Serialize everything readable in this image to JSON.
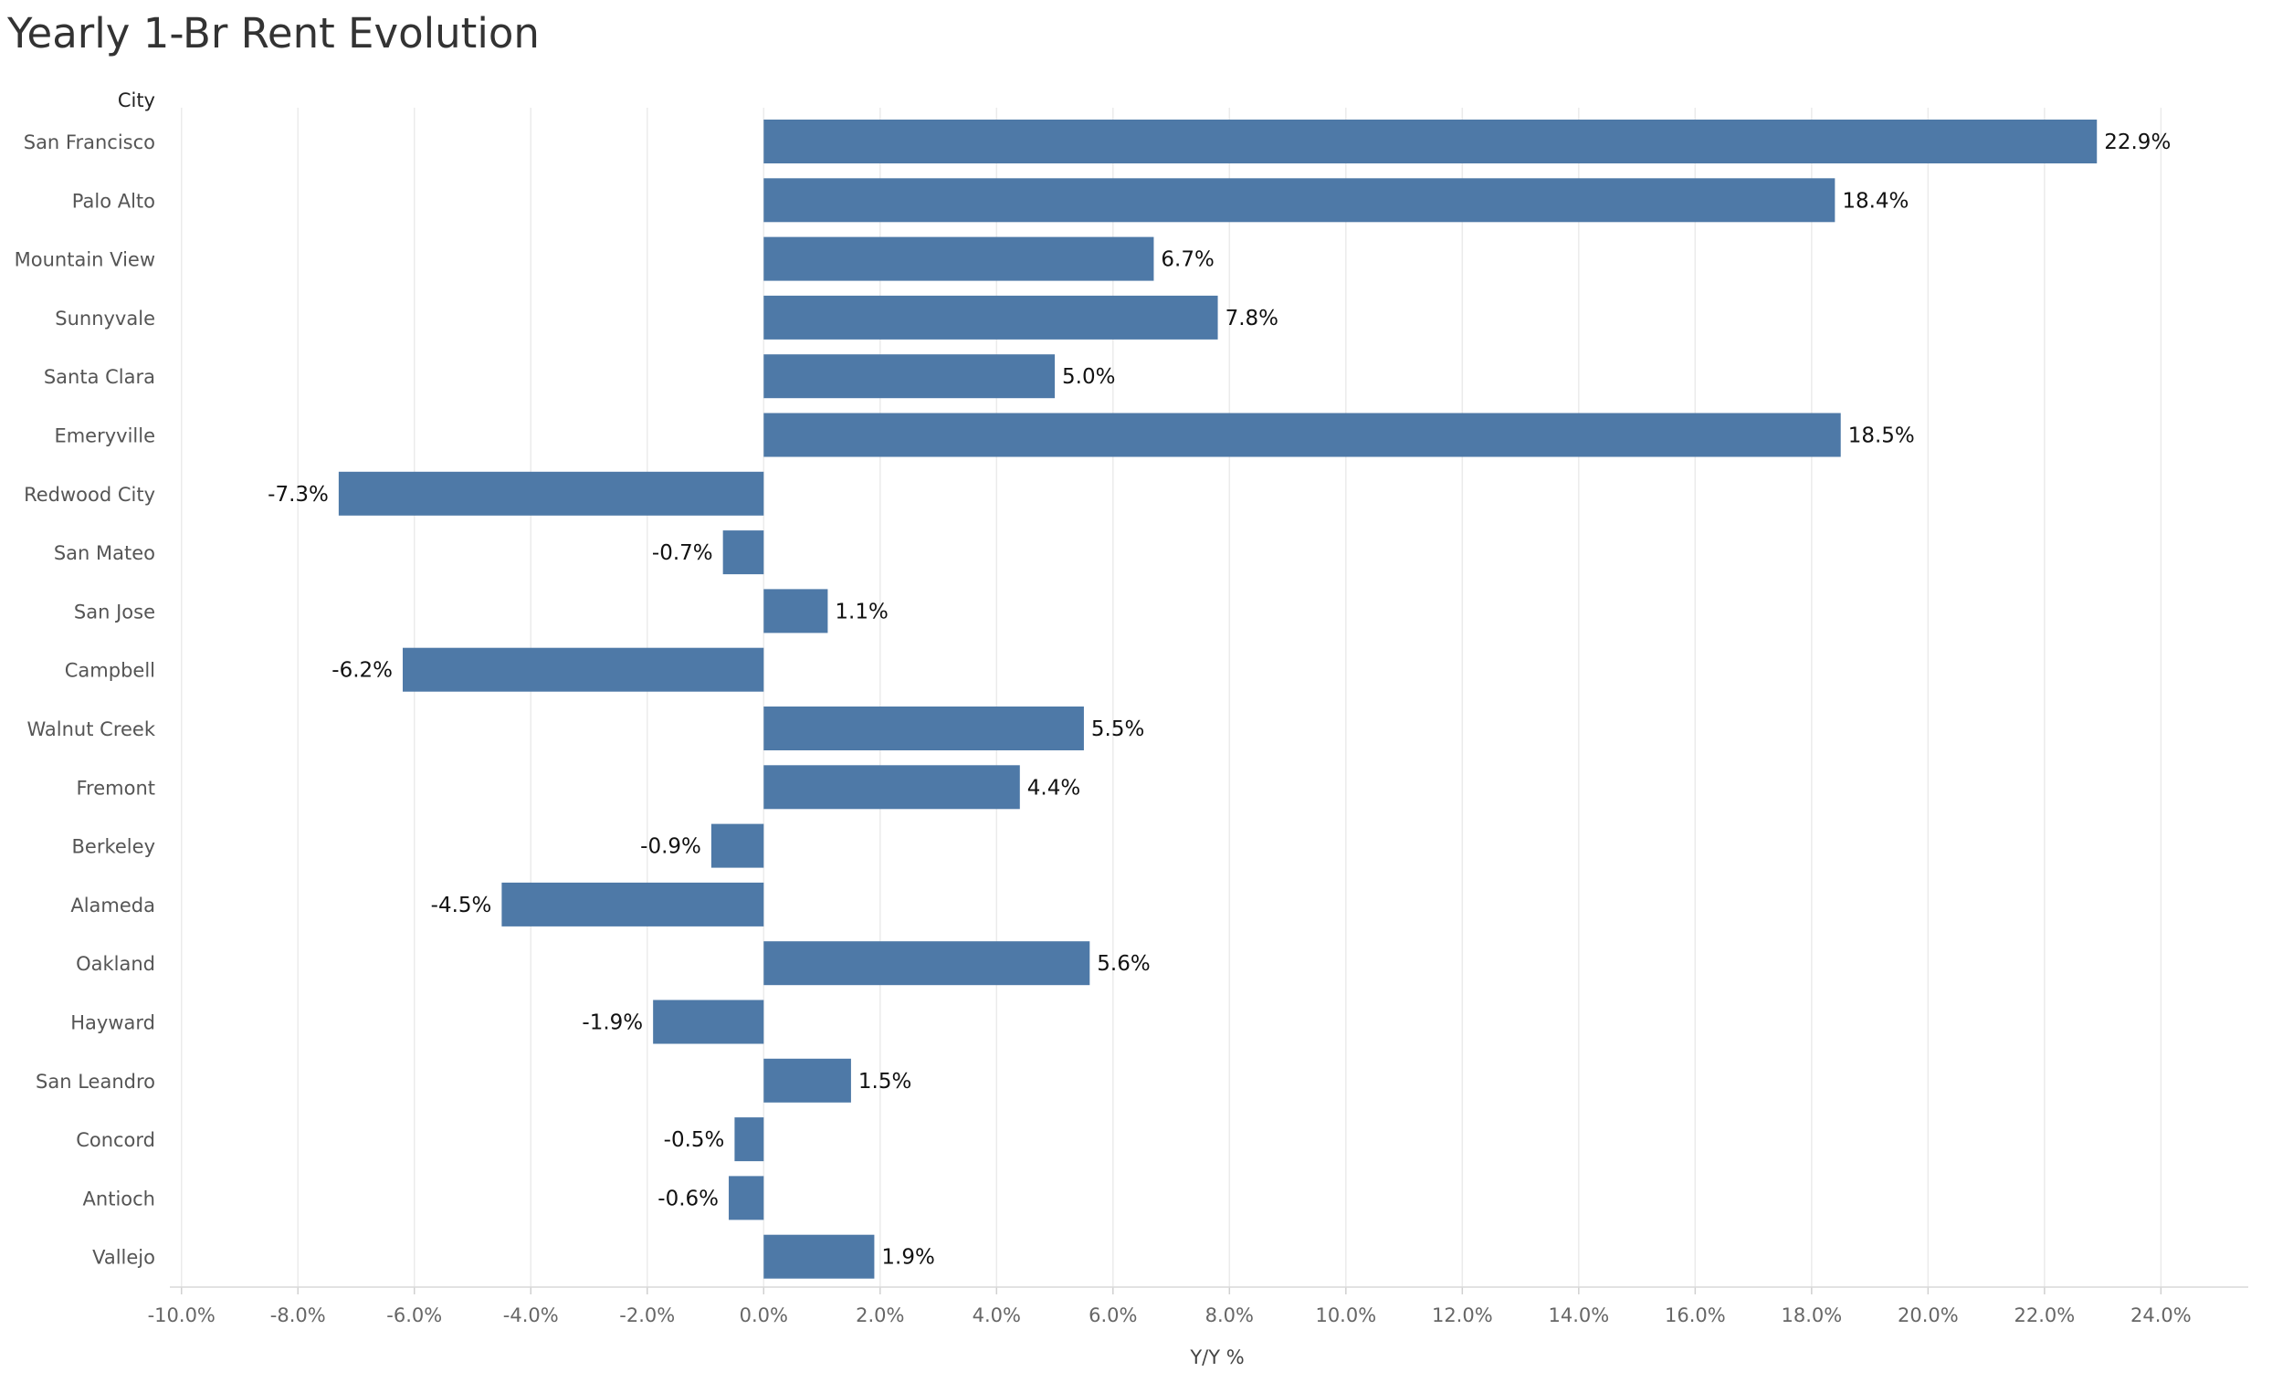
{
  "title": "Yearly 1-Br Rent Evolution",
  "chart_data": {
    "type": "bar",
    "orientation": "horizontal",
    "row_header": "City",
    "xlabel": "Y/Y %",
    "categories": [
      "San Francisco",
      "Palo Alto",
      "Mountain View",
      "Sunnyvale",
      "Santa Clara",
      "Emeryville",
      "Redwood City",
      "San Mateo",
      "San Jose",
      "Campbell",
      "Walnut Creek",
      "Fremont",
      "Berkeley",
      "Alameda",
      "Oakland",
      "Hayward",
      "San Leandro",
      "Concord",
      "Antioch",
      "Vallejo"
    ],
    "values": [
      22.9,
      18.4,
      6.7,
      7.8,
      5.0,
      18.5,
      -7.3,
      -0.7,
      1.1,
      -6.2,
      5.5,
      4.4,
      -0.9,
      -4.5,
      5.6,
      -1.9,
      1.5,
      -0.5,
      -0.6,
      1.9
    ],
    "data_labels": [
      "22.9%",
      "18.4%",
      "6.7%",
      "7.8%",
      "5.0%",
      "18.5%",
      "-7.3%",
      "-0.7%",
      "1.1%",
      "-6.2%",
      "5.5%",
      "4.4%",
      "-0.9%",
      "-4.5%",
      "5.6%",
      "-1.9%",
      "1.5%",
      "-0.5%",
      "-0.6%",
      "1.9%"
    ],
    "xticks": [
      -10,
      -8,
      -6,
      -4,
      -2,
      0,
      2,
      4,
      6,
      8,
      10,
      12,
      14,
      16,
      18,
      20,
      22,
      24
    ],
    "xtick_labels": [
      "-10.0%",
      "-8.0%",
      "-6.0%",
      "-4.0%",
      "-2.0%",
      "0.0%",
      "2.0%",
      "4.0%",
      "6.0%",
      "8.0%",
      "10.0%",
      "12.0%",
      "14.0%",
      "16.0%",
      "18.0%",
      "20.0%",
      "22.0%",
      "24.0%"
    ],
    "xlim": [
      -10.2,
      25.5
    ],
    "grid": "vertical",
    "bar_color": "#4e79a7"
  }
}
